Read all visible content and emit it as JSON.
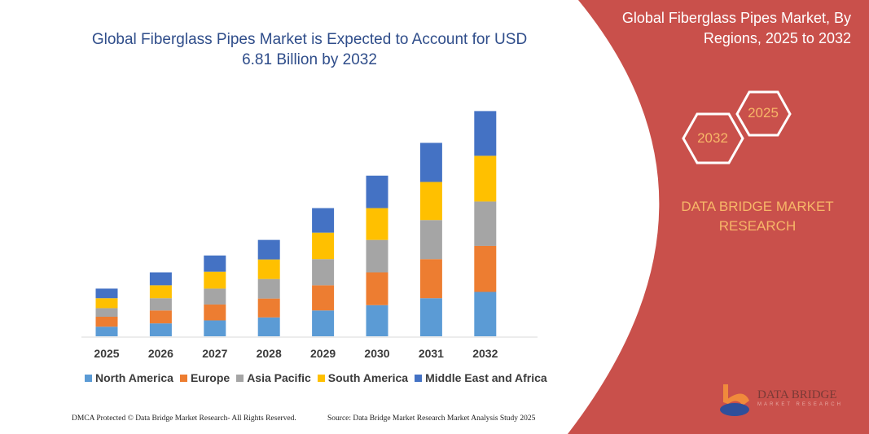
{
  "header": {
    "title_line1": "Global Fiberglass Pipes Market is Expected to Account for USD",
    "title_line2": "6.81 Billion by 2032"
  },
  "panel": {
    "title_line1": "Global Fiberglass Pipes Market, By",
    "title_line2": "Regions, 2025 to 2032",
    "hex_start": "2025",
    "hex_end": "2032",
    "brand_line1": "DATA BRIDGE MARKET",
    "brand_line2": "RESEARCH",
    "logo_text": "DATA BRIDGE",
    "logo_sub": "MARKET RESEARCH",
    "color": "#c9504b"
  },
  "footer": {
    "left": "DMCA Protected © Data Bridge Market Research-  All Rights Reserved.",
    "right": "Source: Data Bridge Market Research  Market Analysis Study 2025"
  },
  "chart_data": {
    "type": "bar",
    "stacked": true,
    "title": "Global Fiberglass Pipes Market is Expected to Account for USD 6.81 Billion by 2032",
    "categories": [
      "2025",
      "2026",
      "2027",
      "2028",
      "2029",
      "2030",
      "2031",
      "2032"
    ],
    "ylim": [
      0,
      6.81
    ],
    "grid": false,
    "legend": "bottom",
    "series": [
      {
        "name": "North America",
        "color": "#5b9bd5",
        "values": [
          0.29,
          0.39,
          0.48,
          0.57,
          0.78,
          0.94,
          1.15,
          1.34
        ]
      },
      {
        "name": "Europe",
        "color": "#ed7d31",
        "values": [
          0.3,
          0.39,
          0.48,
          0.57,
          0.76,
          0.99,
          1.18,
          1.39
        ]
      },
      {
        "name": "Asia Pacific",
        "color": "#a5a5a5",
        "values": [
          0.26,
          0.37,
          0.48,
          0.59,
          0.79,
          0.98,
          1.18,
          1.34
        ]
      },
      {
        "name": "South America",
        "color": "#ffc000",
        "values": [
          0.3,
          0.39,
          0.51,
          0.59,
          0.8,
          0.96,
          1.15,
          1.38
        ]
      },
      {
        "name": "Middle East and Africa",
        "color": "#4472c4",
        "values": [
          0.29,
          0.39,
          0.49,
          0.59,
          0.74,
          0.98,
          1.18,
          1.35
        ]
      }
    ]
  }
}
